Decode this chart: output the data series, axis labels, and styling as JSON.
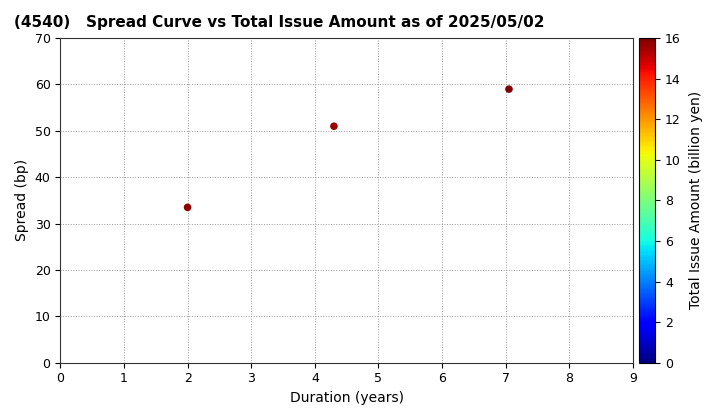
{
  "title": "(4540)   Spread Curve vs Total Issue Amount as of 2025/05/02",
  "xlabel": "Duration (years)",
  "ylabel": "Spread (bp)",
  "colorbar_label": "Total Issue Amount (billion yen)",
  "xlim": [
    0,
    9
  ],
  "ylim": [
    0,
    70
  ],
  "xticks": [
    0,
    1,
    2,
    3,
    4,
    5,
    6,
    7,
    8,
    9
  ],
  "yticks": [
    0,
    10,
    20,
    30,
    40,
    50,
    60,
    70
  ],
  "colorbar_min": 0,
  "colorbar_max": 16,
  "points": [
    {
      "duration": 2.0,
      "spread": 33.5,
      "amount": 15.8
    },
    {
      "duration": 4.3,
      "spread": 51.0,
      "amount": 15.5
    },
    {
      "duration": 7.05,
      "spread": 59.0,
      "amount": 16.0
    }
  ],
  "marker_size": 30,
  "background_color": "#ffffff",
  "grid_color": "#999999",
  "title_fontsize": 11,
  "axis_fontsize": 10,
  "tick_fontsize": 9,
  "colorbar_tick_fontsize": 9
}
